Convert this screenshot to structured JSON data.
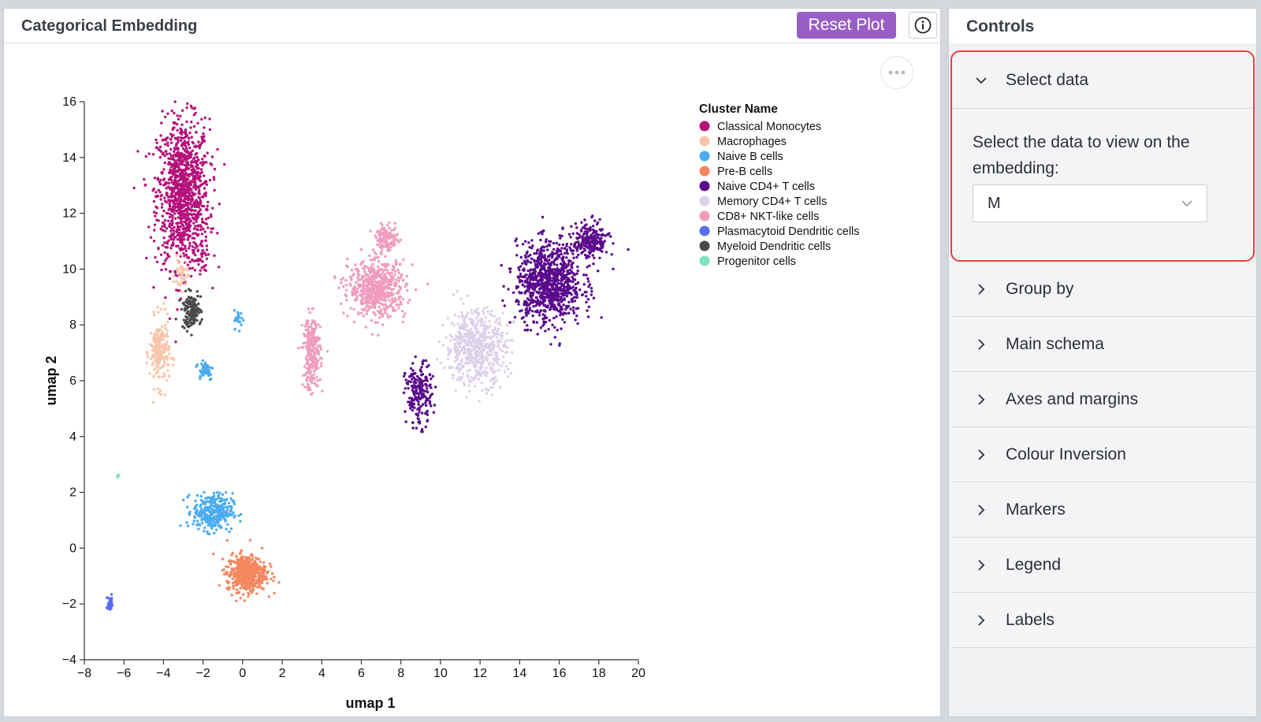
{
  "plot_panel": {
    "title": "Categorical Embedding",
    "reset_label": "Reset Plot",
    "info_icon": "info-icon",
    "more_icon": "more-horizontal-icon"
  },
  "controls": {
    "title": "Controls",
    "sections": [
      {
        "label": "Select data",
        "expanded": true
      },
      {
        "label": "Group by",
        "expanded": false
      },
      {
        "label": "Main schema",
        "expanded": false
      },
      {
        "label": "Axes and margins",
        "expanded": false
      },
      {
        "label": "Colour Inversion",
        "expanded": false
      },
      {
        "label": "Markers",
        "expanded": false
      },
      {
        "label": "Legend",
        "expanded": false
      },
      {
        "label": "Labels",
        "expanded": false
      }
    ],
    "select_data": {
      "description": "Select the data to view on the embedding:",
      "selected_value": "M"
    },
    "highlight_color": "#e8413b"
  },
  "chart_data": {
    "type": "scatter",
    "xlabel": "umap 1",
    "ylabel": "umap 2",
    "xlim": [
      -8,
      20
    ],
    "ylim": [
      -4,
      16
    ],
    "xticks": [
      -8,
      -6,
      -4,
      -2,
      0,
      2,
      4,
      6,
      8,
      10,
      12,
      14,
      16,
      18,
      20
    ],
    "yticks": [
      -4,
      -2,
      0,
      2,
      4,
      6,
      8,
      10,
      12,
      14,
      16
    ],
    "legend_title": "Cluster Name",
    "legend_position": "top-right",
    "grid": false,
    "series": [
      {
        "name": "Classical Monocytes",
        "color": "#b5117a",
        "clusters": [
          {
            "cx": -3.0,
            "cy": 12.7,
            "sx": 1.2,
            "sy": 2.4,
            "n": 1100
          },
          {
            "cx": -2.0,
            "cy": 10.4,
            "sx": 0.3,
            "sy": 0.5,
            "n": 25
          }
        ]
      },
      {
        "name": "Macrophages",
        "color": "#f9c4a9",
        "clusters": [
          {
            "cx": -4.2,
            "cy": 7.0,
            "sx": 0.45,
            "sy": 1.1,
            "n": 220
          },
          {
            "cx": -3.1,
            "cy": 9.8,
            "sx": 0.3,
            "sy": 0.5,
            "n": 40
          }
        ]
      },
      {
        "name": "Naive B cells",
        "color": "#4aabf0",
        "clusters": [
          {
            "cx": -1.5,
            "cy": 1.3,
            "sx": 0.9,
            "sy": 0.6,
            "n": 320
          },
          {
            "cx": -1.9,
            "cy": 6.4,
            "sx": 0.4,
            "sy": 0.35,
            "n": 50
          },
          {
            "cx": -0.2,
            "cy": 8.2,
            "sx": 0.2,
            "sy": 0.3,
            "n": 25
          }
        ]
      },
      {
        "name": "Pre-B cells",
        "color": "#f4875e",
        "clusters": [
          {
            "cx": 0.2,
            "cy": -0.9,
            "sx": 0.9,
            "sy": 0.6,
            "n": 520
          }
        ]
      },
      {
        "name": "Naive CD4+ T cells",
        "color": "#5a0a8c",
        "clusters": [
          {
            "cx": 15.5,
            "cy": 9.5,
            "sx": 1.5,
            "sy": 1.3,
            "n": 900
          },
          {
            "cx": 17.6,
            "cy": 11.0,
            "sx": 0.8,
            "sy": 0.6,
            "n": 220
          },
          {
            "cx": 8.9,
            "cy": 5.5,
            "sx": 0.6,
            "sy": 1.0,
            "n": 200
          }
        ]
      },
      {
        "name": "Memory CD4+ T cells",
        "color": "#ddd0ea",
        "clusters": [
          {
            "cx": 11.8,
            "cy": 7.2,
            "sx": 1.4,
            "sy": 1.2,
            "n": 600
          }
        ]
      },
      {
        "name": "CD8+ NKT-like cells",
        "color": "#f09cbc",
        "clusters": [
          {
            "cx": 6.8,
            "cy": 9.3,
            "sx": 1.3,
            "sy": 0.9,
            "n": 600
          },
          {
            "cx": 3.5,
            "cy": 7.0,
            "sx": 0.4,
            "sy": 1.2,
            "n": 260
          },
          {
            "cx": 7.3,
            "cy": 11.1,
            "sx": 0.5,
            "sy": 0.4,
            "n": 120
          }
        ]
      },
      {
        "name": "Plasmacytoid Dendritic cells",
        "color": "#5a6cf0",
        "clusters": [
          {
            "cx": -6.7,
            "cy": -2.0,
            "sx": 0.15,
            "sy": 0.25,
            "n": 30
          }
        ]
      },
      {
        "name": "Myeloid Dendritic cells",
        "color": "#4a4a4a",
        "clusters": [
          {
            "cx": -2.6,
            "cy": 8.5,
            "sx": 0.45,
            "sy": 0.55,
            "n": 140
          }
        ]
      },
      {
        "name": "Progenitor cells",
        "color": "#7fe3c3",
        "clusters": [
          {
            "cx": -6.3,
            "cy": 2.6,
            "sx": 0.05,
            "sy": 0.08,
            "n": 6
          }
        ]
      }
    ]
  }
}
